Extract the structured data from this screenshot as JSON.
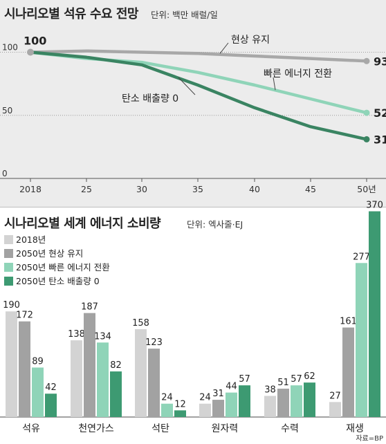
{
  "line_chart": {
    "title": "시나리오별 석유 수요 전망",
    "unit": "단위: 백만 배럴/일"
  },
  "bar_chart": {
    "title": "시나리오별 세계 에너지 소비량",
    "unit": "단위: 엑사줄·EJ"
  },
  "source": "자료=BP",
  "colors": {
    "gray_light": "#d3d3d3",
    "gray_dark": "#a2a2a2",
    "mint": "#8fd4b8",
    "green": "#3d9a72",
    "green_dark": "#3a8462",
    "line_gray": "#a8a8a8"
  },
  "chart_data": [
    {
      "type": "line",
      "title": "시나리오별 석유 수요 전망",
      "unit": "단위: 백만 배럴/일",
      "x": [
        2018,
        2025,
        2030,
        2035,
        2040,
        2045,
        2050
      ],
      "x_tick_labels": [
        "2018",
        "25",
        "30",
        "35",
        "40",
        "45",
        "50년"
      ],
      "y_ticks": [
        0,
        50,
        100
      ],
      "ylim": [
        0,
        100
      ],
      "grid": "dotted horizontal at 50 and 100",
      "series": [
        {
          "name": "현상 유지",
          "values": [
            100,
            101,
            100,
            99,
            97,
            95,
            93
          ],
          "color": "#a8a8a8",
          "end_label": "93"
        },
        {
          "name": "빠른 에너지 전환",
          "values": [
            100,
            95,
            92,
            84,
            74,
            63,
            52
          ],
          "color": "#8fd4b8",
          "end_label": "52"
        },
        {
          "name": "탄소 배출량 0",
          "values": [
            100,
            96,
            90,
            74,
            56,
            41,
            31
          ],
          "color": "#3a8462",
          "end_label": "31"
        }
      ],
      "start_label": "100"
    },
    {
      "type": "bar",
      "title": "시나리오별 세계 에너지 소비량",
      "unit": "단위: 엑사줄·EJ",
      "categories": [
        "석유",
        "천연가스",
        "석탄",
        "원자력",
        "수력",
        "재생"
      ],
      "series": [
        {
          "name": "2018년",
          "values": [
            190,
            138,
            158,
            24,
            38,
            27
          ],
          "color": "#d3d3d3"
        },
        {
          "name": "2050년 현상 유지",
          "values": [
            172,
            187,
            123,
            31,
            51,
            161
          ],
          "color": "#a2a2a2"
        },
        {
          "name": "2050년 빠른 에너지 전환",
          "values": [
            89,
            134,
            24,
            44,
            57,
            277
          ],
          "color": "#8fd4b8"
        },
        {
          "name": "2050년 탄소 배출량 0",
          "values": [
            42,
            82,
            12,
            57,
            62,
            370
          ],
          "color": "#3d9a72"
        }
      ],
      "ylim": [
        0,
        370
      ]
    }
  ]
}
